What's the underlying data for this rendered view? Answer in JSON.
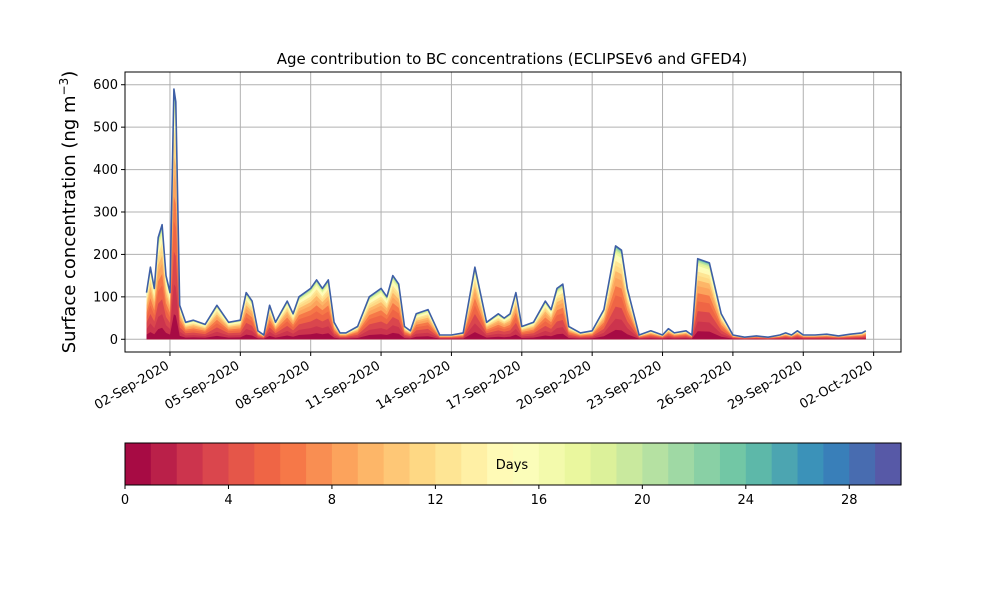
{
  "chart_data": {
    "type": "area",
    "title": "Age contribution to BC concentrations (ECLIPSEv6 and GFED4)",
    "ylabel_main": "Surface concentration (ng m",
    "ylabel_sup": "−3",
    "ylabel_close": ")",
    "xlabel": "",
    "x_axis": "date",
    "x_start": "2020-09-01",
    "xlim": [
      "2020-08-31T02:00",
      "2020-10-03T04:00"
    ],
    "ylim": [
      -30,
      630
    ],
    "grid": true,
    "x_tick_dates": [
      "2020-09-02",
      "2020-09-05",
      "2020-09-08",
      "2020-09-11",
      "2020-09-14",
      "2020-09-17",
      "2020-09-20",
      "2020-09-23",
      "2020-09-26",
      "2020-09-29",
      "2020-10-02"
    ],
    "x_tick_labels": [
      "02-Sep-2020",
      "05-Sep-2020",
      "08-Sep-2020",
      "11-Sep-2020",
      "14-Sep-2020",
      "17-Sep-2020",
      "20-Sep-2020",
      "23-Sep-2020",
      "26-Sep-2020",
      "29-Sep-2020",
      "02-Oct-2020"
    ],
    "y_ticks": [
      0,
      100,
      200,
      300,
      400,
      500,
      600
    ],
    "total_series": {
      "name": "",
      "x": [
        "2020-09-01T00:00",
        "2020-09-01T04:00",
        "2020-09-01T08:00",
        "2020-09-01T12:00",
        "2020-09-01T16:00",
        "2020-09-01T20:00",
        "2020-09-02T00:00",
        "2020-09-02T04:00",
        "2020-09-02T06:00",
        "2020-09-02T10:00",
        "2020-09-02T16:00",
        "2020-09-03T00:00",
        "2020-09-03T12:00",
        "2020-09-04T00:00",
        "2020-09-04T12:00",
        "2020-09-05T00:00",
        "2020-09-05T06:00",
        "2020-09-05T12:00",
        "2020-09-05T18:00",
        "2020-09-06T00:00",
        "2020-09-06T06:00",
        "2020-09-06T12:00",
        "2020-09-07T00:00",
        "2020-09-07T06:00",
        "2020-09-07T12:00",
        "2020-09-08T00:00",
        "2020-09-08T06:00",
        "2020-09-08T12:00",
        "2020-09-08T18:00",
        "2020-09-09T00:00",
        "2020-09-09T06:00",
        "2020-09-09T12:00",
        "2020-09-10T00:00",
        "2020-09-10T12:00",
        "2020-09-11T00:00",
        "2020-09-11T06:00",
        "2020-09-11T12:00",
        "2020-09-11T18:00",
        "2020-09-12T00:00",
        "2020-09-12T06:00",
        "2020-09-12T12:00",
        "2020-09-13T00:00",
        "2020-09-13T12:00",
        "2020-09-14T00:00",
        "2020-09-14T12:00",
        "2020-09-15T00:00",
        "2020-09-15T12:00",
        "2020-09-16T00:00",
        "2020-09-16T06:00",
        "2020-09-16T12:00",
        "2020-09-16T18:00",
        "2020-09-17T00:00",
        "2020-09-17T12:00",
        "2020-09-18T00:00",
        "2020-09-18T06:00",
        "2020-09-18T12:00",
        "2020-09-18T18:00",
        "2020-09-19T00:00",
        "2020-09-19T12:00",
        "2020-09-20T00:00",
        "2020-09-20T12:00",
        "2020-09-21T00:00",
        "2020-09-21T06:00",
        "2020-09-21T12:00",
        "2020-09-22T00:00",
        "2020-09-22T12:00",
        "2020-09-23T00:00",
        "2020-09-23T06:00",
        "2020-09-23T12:00",
        "2020-09-24T00:00",
        "2020-09-24T06:00",
        "2020-09-24T12:00",
        "2020-09-25T00:00",
        "2020-09-25T12:00",
        "2020-09-26T00:00",
        "2020-09-26T12:00",
        "2020-09-27T00:00",
        "2020-09-27T12:00",
        "2020-09-28T00:00",
        "2020-09-28T06:00",
        "2020-09-28T12:00",
        "2020-09-28T18:00",
        "2020-09-29T00:00",
        "2020-09-29T12:00",
        "2020-09-30T00:00",
        "2020-09-30T12:00",
        "2020-10-01T00:00",
        "2020-10-01T12:00",
        "2020-10-01T16:00"
      ],
      "values": [
        110,
        170,
        120,
        240,
        270,
        150,
        110,
        590,
        560,
        80,
        40,
        45,
        35,
        80,
        40,
        45,
        110,
        90,
        20,
        10,
        80,
        40,
        90,
        60,
        100,
        120,
        140,
        120,
        140,
        40,
        15,
        15,
        30,
        100,
        120,
        100,
        150,
        130,
        30,
        20,
        60,
        70,
        10,
        10,
        15,
        170,
        40,
        60,
        50,
        60,
        110,
        30,
        40,
        90,
        70,
        120,
        130,
        30,
        15,
        20,
        70,
        220,
        210,
        120,
        10,
        20,
        10,
        25,
        15,
        20,
        10,
        190,
        180,
        60,
        10,
        5,
        8,
        5,
        10,
        15,
        10,
        20,
        10,
        10,
        12,
        8,
        12,
        15,
        20
      ]
    },
    "colorbar": {
      "label": "Days",
      "range": [
        0,
        30
      ],
      "bins": 30,
      "colormap": "Spectral",
      "tick_values": [
        0,
        4,
        8,
        12,
        16,
        20,
        24,
        28
      ],
      "tick_labels": [
        "0",
        "4",
        "8",
        "12",
        "16",
        "20",
        "24",
        "28"
      ]
    },
    "colors": {
      "outline": "#3e5fa6",
      "grid": "#b0b0b0",
      "axis": "#000000"
    }
  }
}
